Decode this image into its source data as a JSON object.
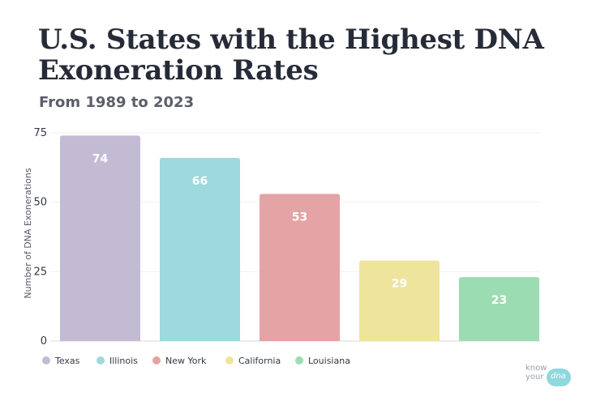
{
  "header": {
    "title": "U.S. States with the Highest DNA Exoneration Rates",
    "subtitle": "From 1989 to 2023"
  },
  "chart_data": {
    "type": "bar",
    "title": "U.S. States with the Highest DNA Exoneration Rates",
    "subtitle": "From 1989 to 2023",
    "xlabel": "",
    "ylabel": "Number of DNA Exonerations",
    "ylim": [
      0,
      75
    ],
    "yticks": [
      0,
      25,
      50,
      75
    ],
    "grid": true,
    "legend_position": "bottom-left",
    "categories": [
      "Texas",
      "Illinois",
      "New York",
      "California",
      "Louisiana"
    ],
    "values": [
      74,
      66,
      53,
      29,
      23
    ],
    "data_labels": [
      "74",
      "66",
      "53",
      "29",
      "23"
    ],
    "colors": [
      "#c3bbd4",
      "#9dd9dd",
      "#e4a3a4",
      "#eee49c",
      "#9cdcb3"
    ]
  },
  "logo": {
    "line1": "know",
    "line2": "your",
    "line3": "dna"
  }
}
